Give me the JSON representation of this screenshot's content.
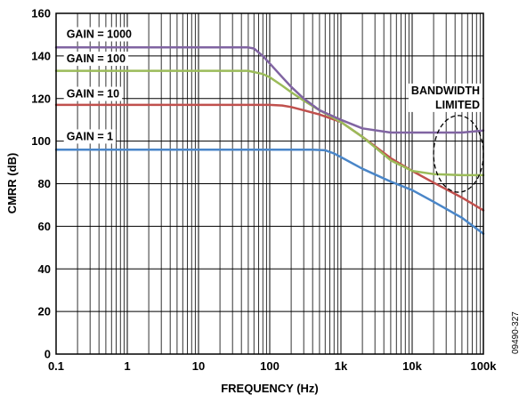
{
  "figure_id": "09490-327",
  "chart_data": {
    "type": "line",
    "title": "",
    "xlabel": "FREQUENCY (Hz)",
    "ylabel": "CMRR (dB)",
    "x_scale": "log",
    "xlim": [
      0.1,
      100000
    ],
    "ylim": [
      0,
      160
    ],
    "x_ticks": [
      {
        "value": 0.1,
        "label": "0.1"
      },
      {
        "value": 1,
        "label": "1"
      },
      {
        "value": 10,
        "label": "10"
      },
      {
        "value": 100,
        "label": "100"
      },
      {
        "value": 1000,
        "label": "1k"
      },
      {
        "value": 10000,
        "label": "10k"
      },
      {
        "value": 100000,
        "label": "100k"
      }
    ],
    "y_ticks": [
      {
        "value": 0,
        "label": "0"
      },
      {
        "value": 20,
        "label": "20"
      },
      {
        "value": 40,
        "label": "40"
      },
      {
        "value": 60,
        "label": "60"
      },
      {
        "value": 80,
        "label": "80"
      },
      {
        "value": 100,
        "label": "100"
      },
      {
        "value": 120,
        "label": "120"
      },
      {
        "value": 140,
        "label": "140"
      },
      {
        "value": 160,
        "label": "160"
      }
    ],
    "grid": true,
    "series": [
      {
        "name": "GAIN = 1",
        "color": "#4a86c8",
        "label_at": {
          "x": 0.14,
          "y": 100.5
        },
        "points": [
          [
            0.1,
            96
          ],
          [
            1,
            96
          ],
          [
            10,
            96
          ],
          [
            100,
            96
          ],
          [
            400,
            96
          ],
          [
            600,
            95.7
          ],
          [
            800,
            94.2
          ],
          [
            1000,
            92.5
          ],
          [
            2000,
            87
          ],
          [
            5000,
            81
          ],
          [
            10000,
            77
          ],
          [
            20000,
            71.5
          ],
          [
            50000,
            64
          ],
          [
            100000,
            56.5
          ]
        ]
      },
      {
        "name": "GAIN = 10",
        "color": "#c0504d",
        "label_at": {
          "x": 0.14,
          "y": 120.5
        },
        "points": [
          [
            0.1,
            117
          ],
          [
            1,
            117
          ],
          [
            10,
            117
          ],
          [
            100,
            117
          ],
          [
            150,
            116.7
          ],
          [
            200,
            116
          ],
          [
            300,
            114.5
          ],
          [
            500,
            112.5
          ],
          [
            1000,
            109
          ],
          [
            2000,
            102
          ],
          [
            5000,
            92
          ],
          [
            10000,
            86
          ],
          [
            20000,
            80.5
          ],
          [
            50000,
            73.5
          ],
          [
            100000,
            67.5
          ]
        ]
      },
      {
        "name": "GAIN = 100",
        "color": "#9bbb59",
        "label_at": {
          "x": 0.14,
          "y": 137
        },
        "points": [
          [
            0.1,
            133
          ],
          [
            1,
            133
          ],
          [
            10,
            133
          ],
          [
            50,
            133
          ],
          [
            80,
            131.5
          ],
          [
            100,
            130
          ],
          [
            150,
            126
          ],
          [
            200,
            123
          ],
          [
            300,
            119
          ],
          [
            500,
            114.5
          ],
          [
            1000,
            109
          ],
          [
            2000,
            102
          ],
          [
            5000,
            91
          ],
          [
            10000,
            86
          ],
          [
            20000,
            84.5
          ],
          [
            50000,
            84
          ],
          [
            100000,
            84
          ]
        ]
      },
      {
        "name": "GAIN = 1000",
        "color": "#8064a2",
        "label_at": {
          "x": 0.14,
          "y": 148.5
        },
        "points": [
          [
            0.1,
            144
          ],
          [
            1,
            144
          ],
          [
            10,
            144
          ],
          [
            50,
            144
          ],
          [
            60,
            143.5
          ],
          [
            80,
            140
          ],
          [
            100,
            136.5
          ],
          [
            150,
            130
          ],
          [
            200,
            125.5
          ],
          [
            300,
            120
          ],
          [
            500,
            114.5
          ],
          [
            1000,
            110
          ],
          [
            2000,
            106
          ],
          [
            5000,
            104
          ],
          [
            10000,
            104
          ],
          [
            20000,
            104
          ],
          [
            50000,
            104
          ],
          [
            100000,
            105
          ]
        ]
      }
    ],
    "annotations": [
      {
        "text_lines": [
          "BANDWIDTH",
          "LIMITED"
        ],
        "shape": "dashed-ellipse",
        "center": {
          "x": 45000,
          "y": 94
        },
        "span_x": [
          20000,
          100000
        ],
        "span_y": [
          76,
          112
        ]
      }
    ]
  }
}
